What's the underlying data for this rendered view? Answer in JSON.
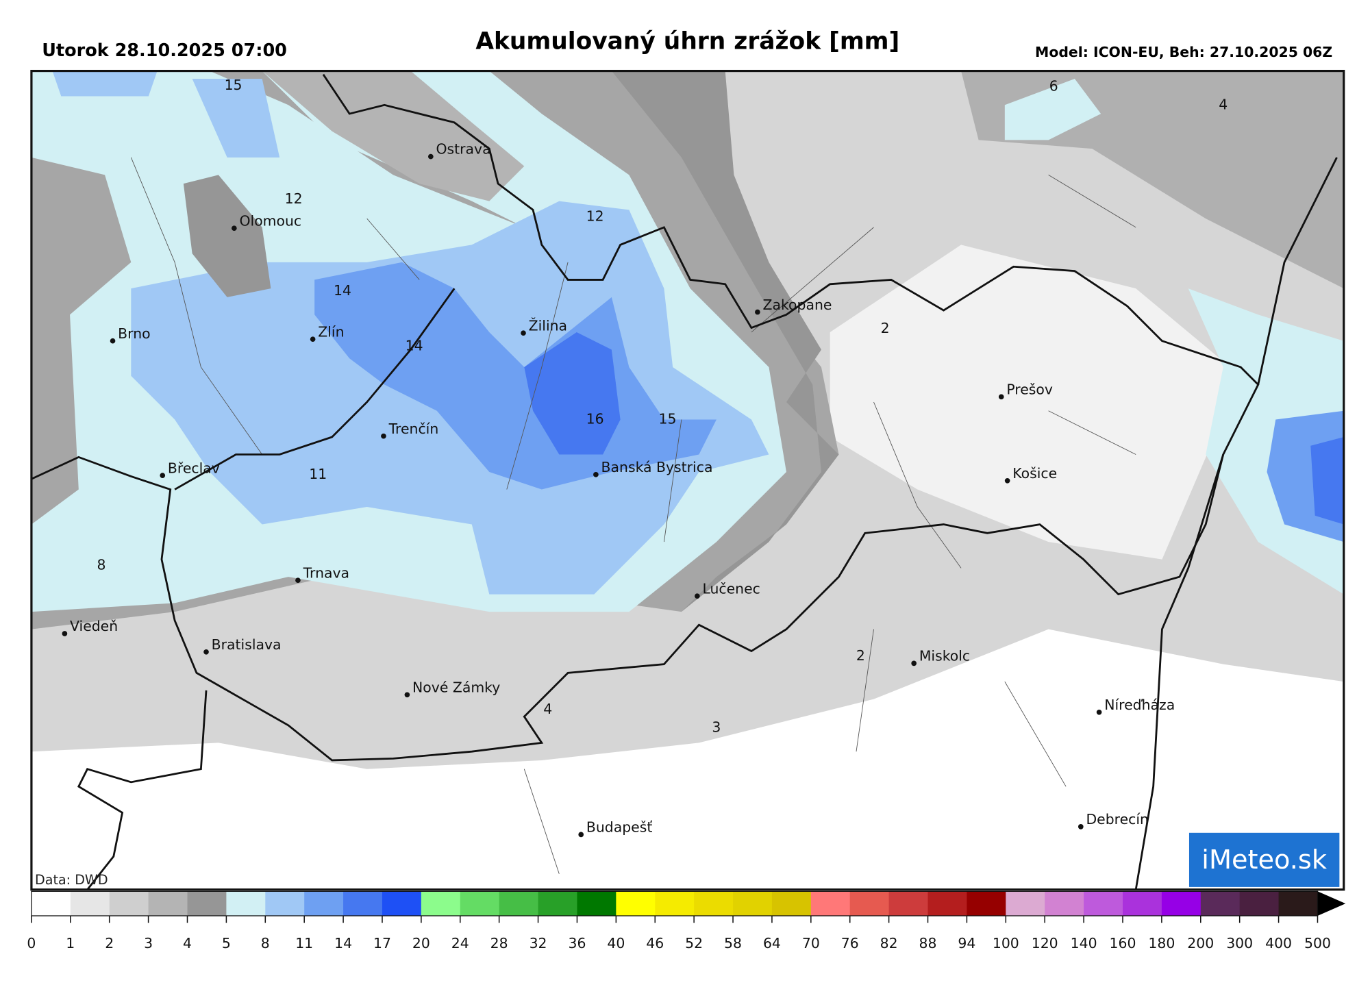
{
  "header": {
    "valid_time": "Utorok 28.10.2025 07:00",
    "title": "Akumulovaný úhrn zrážok [mm]",
    "model_info": "Model: ICON-EU, Beh: 27.10.2025 06Z"
  },
  "map": {
    "cities": [
      "Ostrava",
      "Olomouc",
      "Brno",
      "Zlín",
      "Žilina",
      "Zakopane",
      "Prešov",
      "Košice",
      "Trenčín",
      "Břeclav",
      "Banská Bystrica",
      "Trnava",
      "Lučenec",
      "Viedeň",
      "Bratislava",
      "Miskolc",
      "Nové Zámky",
      "Níreďháza",
      "Budapešť",
      "Debrecín"
    ],
    "contour_labels": [
      15,
      12,
      12,
      14,
      14,
      16,
      15,
      11,
      8,
      2,
      6,
      4,
      2,
      4,
      3
    ],
    "data_source": "Data: DWD",
    "logo": "iMeteo.sk"
  },
  "colorbar": {
    "ticks": [
      0,
      1,
      2,
      3,
      4,
      5,
      8,
      11,
      14,
      17,
      20,
      24,
      28,
      32,
      36,
      40,
      46,
      52,
      58,
      64,
      70,
      76,
      82,
      88,
      94,
      100,
      120,
      140,
      160,
      180,
      200,
      300,
      400,
      500
    ],
    "colors": [
      "#ffffff",
      "#e6e6e6",
      "#cfcfcf",
      "#b4b4b4",
      "#969696",
      "#d2f0f4",
      "#a0c8f5",
      "#6ea0f2",
      "#4678f0",
      "#1e50f5",
      "#8cfc8c",
      "#64dc64",
      "#46be46",
      "#28a028",
      "#007800",
      "#ffff00",
      "#f5eb00",
      "#ebdc00",
      "#e1d200",
      "#d7c300",
      "#ff7878",
      "#e65a50",
      "#cd3c3c",
      "#b41e1e",
      "#960000",
      "#dcaad2",
      "#d282d2",
      "#be5adc",
      "#aa32dc",
      "#9600e6",
      "#5a2a5a",
      "#4a2040",
      "#2a1a1a"
    ],
    "over_color": "#000000"
  }
}
